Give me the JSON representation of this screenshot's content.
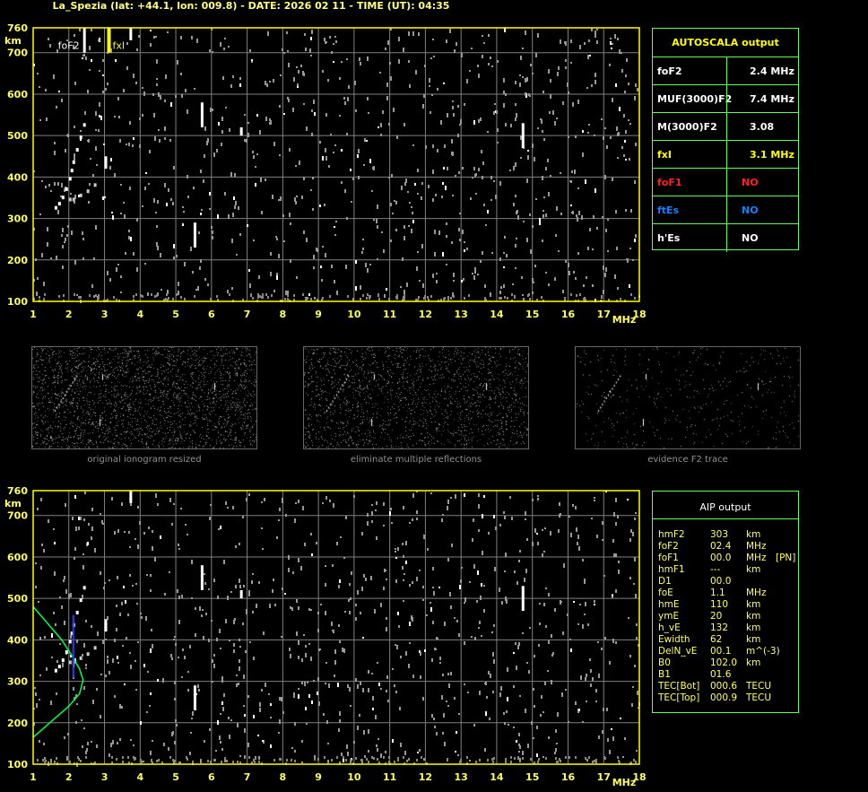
{
  "header": {
    "title": "La_Spezia (lat: +44.1, lon: 009.8) - DATE: 2026 02 11 - TIME (UT): 04:35"
  },
  "colors": {
    "axis": "#ffff00",
    "grid": "#808080",
    "label": "#ffff60",
    "panel_border": "#60ff60",
    "profile": "#00ff40"
  },
  "chart_data": [
    {
      "type": "scatter",
      "name": "ionogram-top",
      "xlabel": "MHz",
      "ylabel": "km",
      "xlim": [
        1,
        18
      ],
      "ylim": [
        100,
        760
      ],
      "x_ticks": [
        "1",
        "2",
        "3",
        "4",
        "5",
        "6",
        "7",
        "8",
        "9",
        "10",
        "11",
        "12",
        "13",
        "14",
        "15",
        "16",
        "17",
        "18"
      ],
      "y_ticks": [
        "100",
        "200",
        "300",
        "400",
        "500",
        "600",
        "700",
        "760"
      ],
      "grid": true,
      "markers": [
        {
          "label": "foF2",
          "freq": 2.4,
          "color": "#ffffff"
        },
        {
          "label": "fxI",
          "freq": 3.1,
          "color": "#ffff00"
        }
      ],
      "trace_o": {
        "freq": [
          1.6,
          1.7,
          1.8,
          1.9,
          2.0,
          2.05,
          2.1,
          2.2,
          2.3,
          2.4
        ],
        "height": [
          330,
          340,
          355,
          375,
          400,
          420,
          440,
          470,
          500,
          530
        ]
      },
      "trace_x": {
        "freq": [
          2.0,
          2.1,
          2.3,
          2.5,
          2.7
        ],
        "height": [
          350,
          350,
          360,
          370,
          385
        ]
      }
    },
    {
      "type": "scatter",
      "name": "ionogram-bottom",
      "xlabel": "MHz",
      "ylabel": "km",
      "xlim": [
        1,
        18
      ],
      "ylim": [
        100,
        760
      ],
      "x_ticks": [
        "1",
        "2",
        "3",
        "4",
        "5",
        "6",
        "7",
        "8",
        "9",
        "10",
        "11",
        "12",
        "13",
        "14",
        "15",
        "16",
        "17",
        "18"
      ],
      "y_ticks": [
        "100",
        "200",
        "300",
        "400",
        "500",
        "600",
        "700",
        "760"
      ],
      "grid": true,
      "profile": {
        "freq": [
          1.0,
          1.4,
          1.8,
          2.1,
          2.3,
          2.4,
          2.3,
          2.0,
          1.6,
          1.2,
          1.0
        ],
        "height": [
          480,
          440,
          400,
          360,
          330,
          303,
          270,
          240,
          210,
          180,
          165
        ]
      }
    }
  ],
  "autoscala": {
    "title": "AUTOSCALA output",
    "rows": [
      {
        "label": "foF2",
        "value": "2.4 MHz",
        "color": "#ffffff"
      },
      {
        "label": "MUF(3000)F2",
        "value": "7.4 MHz",
        "color": "#ffffff"
      },
      {
        "label": "M(3000)F2",
        "value": "3.08",
        "color": "#ffffff"
      },
      {
        "label": "fxI",
        "value": "3.1 MHz",
        "color": "#ffff00"
      },
      {
        "label": "foF1",
        "value": "NO",
        "color": "#ff2020"
      },
      {
        "label": "ftEs",
        "value": "NO",
        "color": "#1080ff"
      },
      {
        "label": "h'Es",
        "value": "NO",
        "color": "#ffffff"
      }
    ]
  },
  "thumbnails": [
    "original ionogram resized",
    "eliminate multiple reflections",
    "evidence F2 trace"
  ],
  "aip": {
    "title": "AIP output",
    "rows": [
      [
        "hmF2",
        "303",
        "km",
        ""
      ],
      [
        "foF2",
        "02.4",
        "MHz",
        ""
      ],
      [
        "foF1",
        "00.0",
        "MHz",
        "[PN]"
      ],
      [
        "hmF1",
        "---",
        "km",
        ""
      ],
      [
        "D1",
        "00.0",
        "",
        ""
      ],
      [
        "foE",
        "1.1",
        "MHz",
        ""
      ],
      [
        "hmE",
        "110",
        "km",
        ""
      ],
      [
        "ymE",
        "20",
        "km",
        ""
      ],
      [
        "h_vE",
        "132",
        "km",
        ""
      ],
      [
        "Ewidth",
        "62",
        "km",
        ""
      ],
      [
        "DelN_vE",
        "00.1",
        "m^(-3)",
        ""
      ],
      [
        "B0",
        "102.0",
        "km",
        ""
      ],
      [
        "B1",
        "01.6",
        "",
        ""
      ],
      [
        "TEC[Bot]",
        "000.6",
        "TECU",
        ""
      ],
      [
        "TEC[Top]",
        "000.9",
        "TECU",
        ""
      ]
    ]
  }
}
